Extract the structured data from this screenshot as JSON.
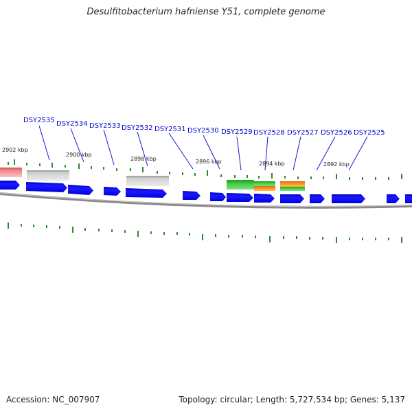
{
  "title": "Desulfitobacterium hafniense Y51, complete genome",
  "footer": {
    "accession": "Accession: NC_007907",
    "summary": "Topology: circular; Length: 5,727,534 bp; Genes: 5,137"
  },
  "colors": {
    "gene_forward": "#0000ee",
    "tick": "#2a8a2a",
    "label": "#0000cc",
    "backbone": "#777777",
    "feature_gray": "#bbbbbb",
    "feature_pink": "#ee8a8a",
    "feature_green": "#44cc44",
    "feature_orange": "#ff8800"
  },
  "scale_labels": [
    "2902 kbp",
    "2900 kbp",
    "2898 kbp",
    "2896 kbp",
    "2894 kbp",
    "2892 kbp"
  ],
  "gene_labels": [
    "DSY2535",
    "DSY2534",
    "DSY2533",
    "DSY2532",
    "DSY2531",
    "DSY2530",
    "DSY2529",
    "DSY2528",
    "DSY2527",
    "DSY2526",
    "DSY2525"
  ]
}
